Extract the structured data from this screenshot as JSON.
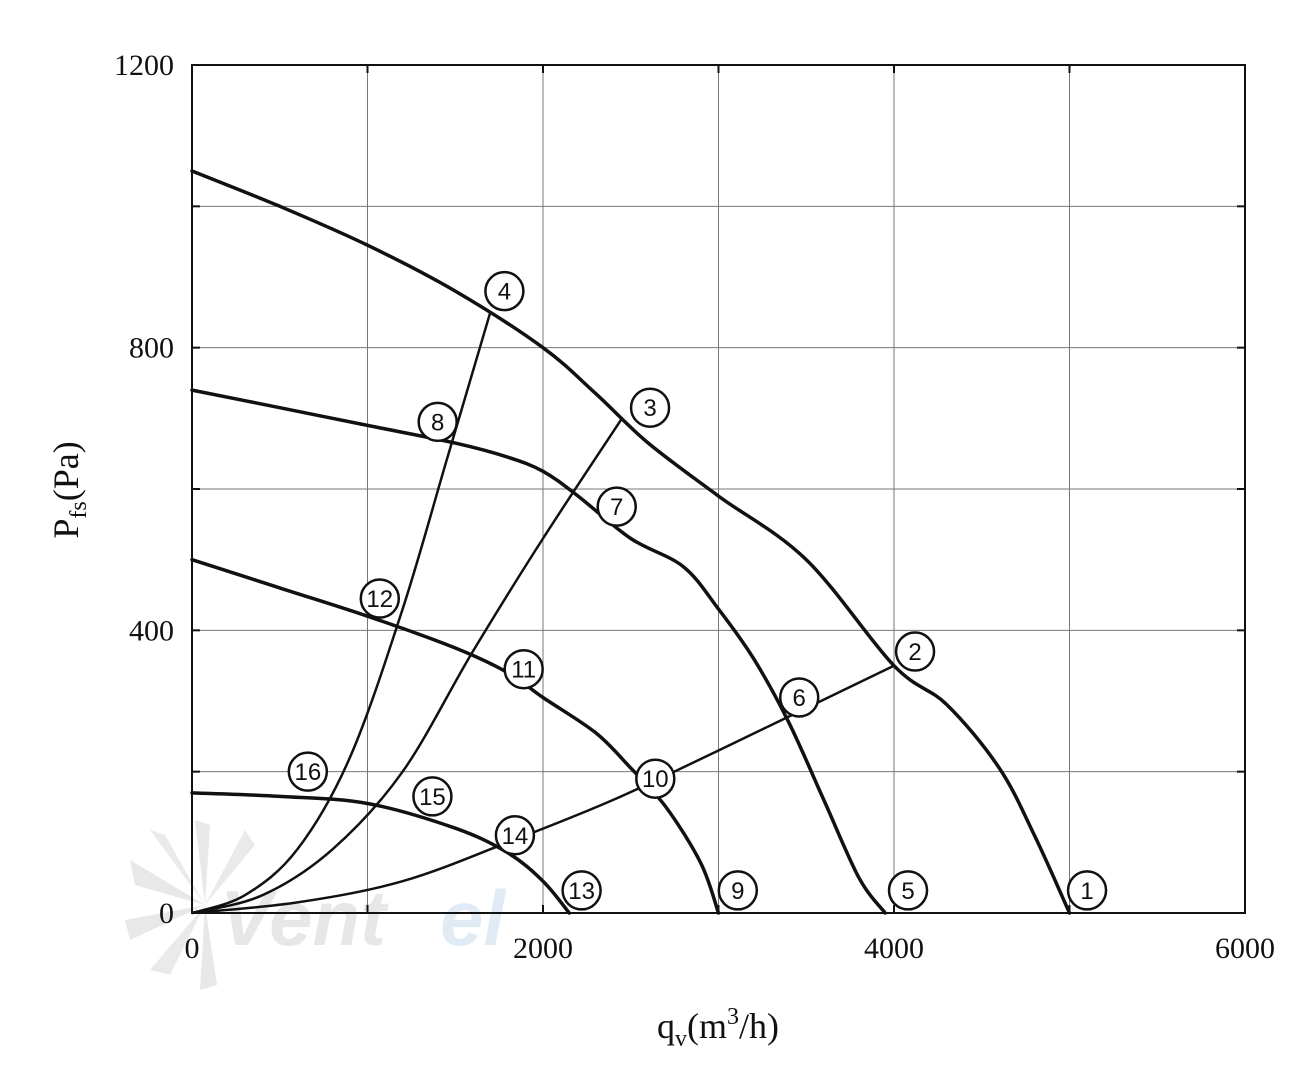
{
  "chart_data": {
    "type": "line",
    "xlabel": "q",
    "xlabel_sub": "v",
    "xlabel_unit_pre": "(m",
    "xlabel_unit_sup": "3",
    "xlabel_unit_post": "/h)",
    "ylabel": "P",
    "ylabel_sub": "fs",
    "ylabel_unit": "(Pa)",
    "xlim": [
      0,
      6000
    ],
    "ylim": [
      0,
      1200
    ],
    "x_ticks": [
      "0",
      "2000",
      "4000",
      "6000"
    ],
    "y_ticks": [
      "0",
      "400",
      "800",
      "1200"
    ],
    "x_tick_values": [
      0,
      2000,
      4000,
      6000
    ],
    "y_tick_values": [
      0,
      400,
      800,
      1200
    ],
    "grid": true,
    "fan_curves": [
      {
        "points": [
          [
            0,
            1050
          ],
          [
            500,
            1000
          ],
          [
            1000,
            945
          ],
          [
            1500,
            880
          ],
          [
            2000,
            800
          ],
          [
            2300,
            735
          ],
          [
            2600,
            665
          ],
          [
            3000,
            590
          ],
          [
            3500,
            500
          ],
          [
            4000,
            350
          ],
          [
            4300,
            295
          ],
          [
            4600,
            205
          ],
          [
            4800,
            110
          ],
          [
            5000,
            0
          ]
        ]
      },
      {
        "points": [
          [
            0,
            740
          ],
          [
            500,
            715
          ],
          [
            1000,
            690
          ],
          [
            1500,
            665
          ],
          [
            1800,
            645
          ],
          [
            2000,
            625
          ],
          [
            2200,
            590
          ],
          [
            2500,
            530
          ],
          [
            2800,
            490
          ],
          [
            3000,
            430
          ],
          [
            3200,
            360
          ],
          [
            3400,
            270
          ],
          [
            3600,
            160
          ],
          [
            3800,
            50
          ],
          [
            3950,
            0
          ]
        ]
      },
      {
        "points": [
          [
            0,
            500
          ],
          [
            500,
            460
          ],
          [
            1000,
            420
          ],
          [
            1500,
            375
          ],
          [
            1800,
            340
          ],
          [
            2000,
            305
          ],
          [
            2300,
            255
          ],
          [
            2500,
            205
          ],
          [
            2700,
            150
          ],
          [
            2900,
            70
          ],
          [
            3000,
            0
          ]
        ]
      },
      {
        "points": [
          [
            0,
            170
          ],
          [
            500,
            165
          ],
          [
            1000,
            155
          ],
          [
            1500,
            120
          ],
          [
            1800,
            85
          ],
          [
            2000,
            45
          ],
          [
            2150,
            0
          ]
        ]
      }
    ],
    "system_curves": [
      {
        "marker": "4",
        "points": [
          [
            0,
            0
          ],
          [
            300,
            25
          ],
          [
            600,
            90
          ],
          [
            900,
            220
          ],
          [
            1200,
            430
          ],
          [
            1450,
            640
          ],
          [
            1700,
            850
          ]
        ]
      },
      {
        "marker": "3",
        "points": [
          [
            0,
            0
          ],
          [
            400,
            25
          ],
          [
            800,
            90
          ],
          [
            1200,
            200
          ],
          [
            1600,
            370
          ],
          [
            2000,
            530
          ],
          [
            2450,
            700
          ]
        ]
      },
      {
        "marker": "2",
        "points": [
          [
            0,
            0
          ],
          [
            600,
            15
          ],
          [
            1200,
            45
          ],
          [
            1800,
            100
          ],
          [
            2400,
            160
          ],
          [
            3000,
            230
          ],
          [
            3500,
            290
          ],
          [
            4000,
            350
          ]
        ]
      }
    ],
    "markers": [
      {
        "label": "1",
        "x": 5100,
        "y": 32
      },
      {
        "label": "2",
        "x": 4120,
        "y": 370
      },
      {
        "label": "3",
        "x": 2610,
        "y": 715
      },
      {
        "label": "4",
        "x": 1780,
        "y": 880
      },
      {
        "label": "5",
        "x": 4080,
        "y": 32
      },
      {
        "label": "6",
        "x": 3460,
        "y": 305
      },
      {
        "label": "7",
        "x": 2420,
        "y": 575
      },
      {
        "label": "8",
        "x": 1400,
        "y": 695
      },
      {
        "label": "9",
        "x": 3110,
        "y": 32
      },
      {
        "label": "10",
        "x": 2640,
        "y": 190
      },
      {
        "label": "11",
        "x": 1890,
        "y": 345
      },
      {
        "label": "12",
        "x": 1070,
        "y": 445
      },
      {
        "label": "13",
        "x": 2220,
        "y": 32
      },
      {
        "label": "14",
        "x": 1840,
        "y": 110
      },
      {
        "label": "15",
        "x": 1370,
        "y": 165
      },
      {
        "label": "16",
        "x": 660,
        "y": 200
      }
    ]
  },
  "watermark": {
    "text": "Ventel",
    "colors": [
      "#d8d8d8",
      "#cfe0f2"
    ]
  },
  "colors": {
    "line": "#111111",
    "grid": "#777777",
    "background": "#ffffff"
  }
}
